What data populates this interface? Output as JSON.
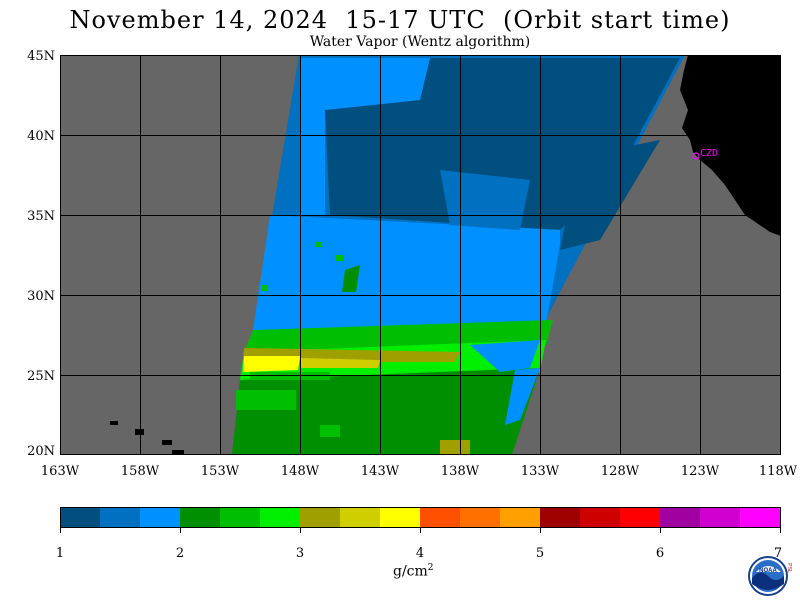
{
  "header": {
    "title": "November 14, 2024  15-17 UTC  (Orbit start time)",
    "subtitle": "Water Vapor (Wentz algorithm)"
  },
  "map": {
    "lat_labels": [
      "45N",
      "40N",
      "35N",
      "30N",
      "25N",
      "20N"
    ],
    "lon_labels": [
      "163W",
      "158W",
      "153W",
      "148W",
      "143W",
      "138W",
      "133W",
      "128W",
      "123W",
      "118W"
    ],
    "station_label": "CZD",
    "colors": {
      "no_data": "#666666",
      "land": "#000000",
      "grid": "#000000",
      "station": "#ff00ff"
    }
  },
  "colorbar": {
    "colors": [
      "#004f7f",
      "#0070c0",
      "#0090ff",
      "#008f00",
      "#00bf00",
      "#00ef00",
      "#9f9f00",
      "#cfcf00",
      "#ffff00",
      "#ff5000",
      "#ff7000",
      "#ffa000",
      "#9f0000",
      "#cf0000",
      "#ff0000",
      "#9f009f",
      "#cf00cf",
      "#ff00ff"
    ],
    "tick_labels": [
      "1",
      "2",
      "3",
      "4",
      "5",
      "6",
      "7"
    ],
    "unit_label": "g/cm",
    "unit_exponent": "2"
  },
  "logo": {
    "text": "NOAA",
    "side_text": "PSL"
  }
}
